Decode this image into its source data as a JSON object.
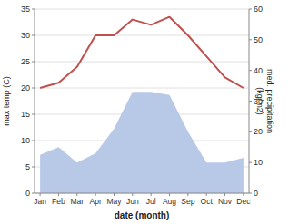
{
  "chart_data": {
    "type": "line",
    "categories": [
      "Jan",
      "Feb",
      "Mar",
      "Apr",
      "May",
      "Jun",
      "Jul",
      "Aug",
      "Sep",
      "Oct",
      "Nov",
      "Dec"
    ],
    "series": [
      {
        "type": "area",
        "color": "#b8c9e8",
        "axis": "y2",
        "values": [
          12.5,
          15.0,
          10.0,
          13.0,
          21.0,
          33.0,
          33.0,
          32.0,
          20.0,
          10.0,
          10.0,
          11.5
        ]
      },
      {
        "type": "line",
        "color": "#c0504d",
        "values": [
          20.0,
          21.0,
          24.0,
          30.0,
          30.0,
          33.0,
          32.0,
          33.5,
          30.0,
          26.0,
          22.0,
          20.0
        ]
      }
    ],
    "xlabel": "date (month)",
    "ylabel": "max temp (C)",
    "y2label": "med. precipitation\n(kg/m2)",
    "ylim": [
      0,
      35
    ],
    "yticks": [
      0,
      5,
      10,
      15,
      20,
      25,
      30,
      35
    ],
    "y2lim": [
      0,
      60
    ],
    "y2ticks": [
      0,
      10,
      20,
      30,
      40,
      50,
      60
    ],
    "grid": true
  }
}
